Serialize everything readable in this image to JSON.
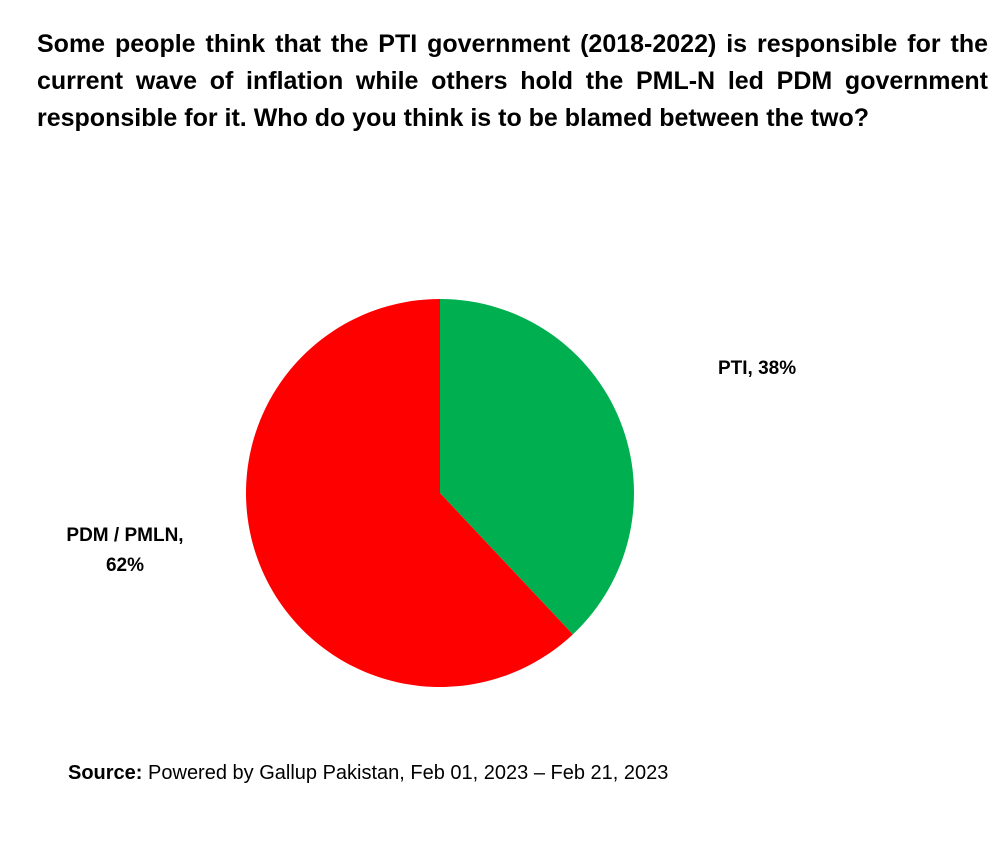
{
  "chart_data": {
    "type": "pie",
    "title": "Some people think that the PTI government (2018-2022) is responsible for the current wave of inflation while others hold the PML-N led PDM government responsible for it. Who do you think is to be blamed between the two?",
    "values": [
      38,
      62
    ],
    "value_labels": [
      "PTI, 38%",
      "PDM / PMLN, 62%"
    ],
    "colors": [
      "#00b050",
      "#ff0000"
    ],
    "source_label": "Source:",
    "source_text": "Powered by Gallup Pakistan, Feb 01, 2023 – Feb 21, 2023"
  }
}
